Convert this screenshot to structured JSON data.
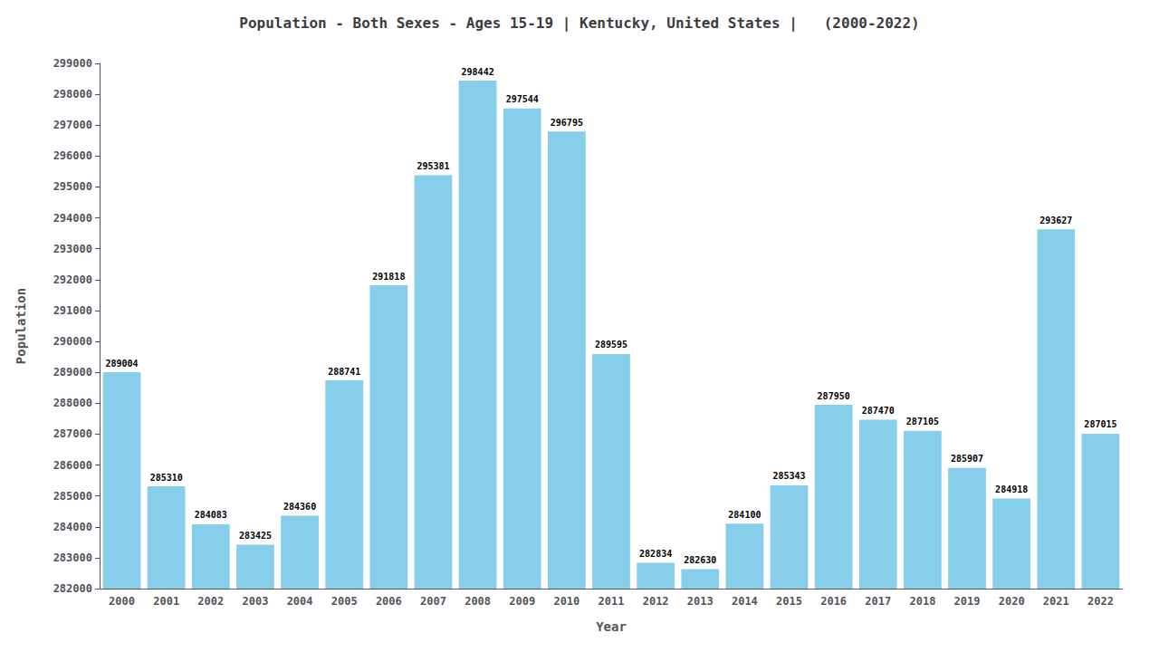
{
  "chart_data": {
    "type": "bar",
    "title": "Population - Both Sexes - Ages 15-19 | Kentucky, United States |   (2000-2022)",
    "x_label": "Year",
    "y_label": "Population",
    "categories": [
      "2000",
      "2001",
      "2002",
      "2003",
      "2004",
      "2005",
      "2006",
      "2007",
      "2008",
      "2009",
      "2010",
      "2011",
      "2012",
      "2013",
      "2014",
      "2015",
      "2016",
      "2017",
      "2018",
      "2019",
      "2020",
      "2021",
      "2022"
    ],
    "values": [
      289004,
      285310,
      284083,
      283425,
      284360,
      288741,
      291818,
      295381,
      298442,
      297544,
      296795,
      289595,
      282834,
      282630,
      284100,
      285343,
      287950,
      287470,
      287105,
      285907,
      284918,
      293627,
      287015
    ],
    "color": "#87ceeb",
    "ylim": [
      282000,
      299000
    ],
    "yticks": [
      282000,
      283000,
      284000,
      285000,
      286000,
      287000,
      288000,
      289000,
      290000,
      291000,
      292000,
      293000,
      294000,
      295000,
      296000,
      297000,
      298000,
      299000
    ],
    "grid": false,
    "data_labels": true
  }
}
